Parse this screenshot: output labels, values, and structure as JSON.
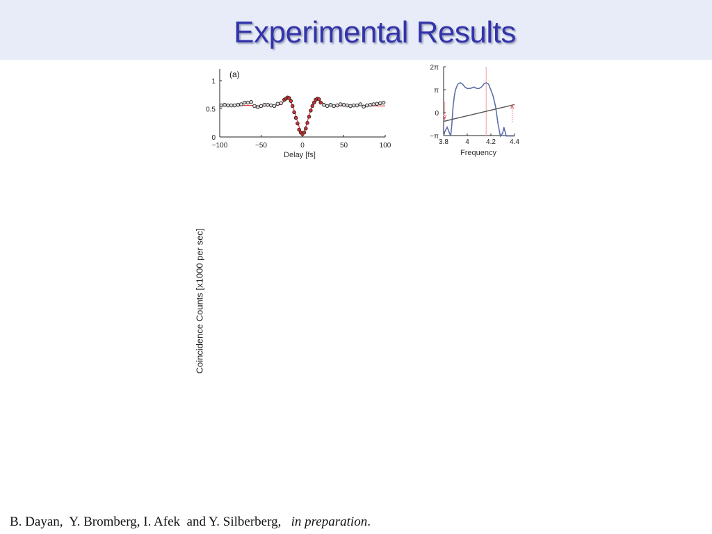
{
  "slide": {
    "title": "Experimental Results",
    "side_ylabel": "Coincidence Counts [x1000 per sec]",
    "citation": {
      "authors": "B. Dayan,  Y. Bromberg, I. Afek  and Y. Silberberg,",
      "status": "in preparation",
      "end": "."
    }
  },
  "chart_data": [
    {
      "type": "scatter",
      "panel_label": "(a)",
      "xlabel": "Delay [fs]",
      "ylabel": "",
      "xlim": [
        -100,
        100
      ],
      "ylim": [
        0,
        1
      ],
      "xticks": [
        "−100",
        "−50",
        "0",
        "50",
        "100"
      ],
      "xtick_values": [
        -100,
        -50,
        0,
        50,
        100
      ],
      "yticks": [
        "0",
        "0.5",
        "1"
      ],
      "ytick_values": [
        0,
        0.5,
        1
      ],
      "colors": {
        "points": "#ffffff",
        "point_stroke": "#222222",
        "near_points": "#e03030",
        "fit": "#e23a3a"
      },
      "series": [
        {
          "kind": "points",
          "x": [
            -98,
            -94,
            -90,
            -86,
            -82,
            -78,
            -74,
            -70,
            -66,
            -62,
            -58,
            -54,
            -50,
            -46,
            -42,
            -38,
            -34,
            -30,
            -26,
            -22,
            -20,
            -18,
            -16,
            -14,
            -12,
            -10,
            -8,
            -6,
            -4,
            -2,
            0,
            2,
            4,
            6,
            8,
            10,
            12,
            14,
            16,
            18,
            20,
            22,
            26,
            30,
            34,
            38,
            42,
            46,
            50,
            54,
            58,
            62,
            66,
            70,
            74,
            78,
            82,
            86,
            90,
            94,
            98
          ],
          "y": [
            0.56,
            0.57,
            0.56,
            0.56,
            0.56,
            0.57,
            0.58,
            0.61,
            0.61,
            0.62,
            0.55,
            0.53,
            0.55,
            0.57,
            0.57,
            0.56,
            0.55,
            0.59,
            0.6,
            0.66,
            0.68,
            0.7,
            0.69,
            0.64,
            0.55,
            0.44,
            0.34,
            0.24,
            0.13,
            0.08,
            0.05,
            0.08,
            0.15,
            0.25,
            0.36,
            0.47,
            0.55,
            0.61,
            0.66,
            0.68,
            0.67,
            0.61,
            0.57,
            0.55,
            0.57,
            0.55,
            0.56,
            0.58,
            0.57,
            0.56,
            0.55,
            0.56,
            0.56,
            0.58,
            0.54,
            0.56,
            0.57,
            0.58,
            0.59,
            0.6,
            0.61
          ]
        },
        {
          "kind": "line",
          "x": [
            -100,
            -90,
            -80,
            -70,
            -60,
            -50,
            -40,
            -34,
            -28,
            -24,
            -20,
            -17,
            -14,
            -11,
            -8,
            -5,
            -2,
            0,
            2,
            5,
            8,
            11,
            14,
            17,
            20,
            24,
            28,
            34,
            40,
            50,
            60,
            70,
            80,
            90,
            100
          ],
          "y": [
            0.55,
            0.55,
            0.55,
            0.56,
            0.56,
            0.55,
            0.55,
            0.55,
            0.57,
            0.61,
            0.66,
            0.68,
            0.64,
            0.52,
            0.38,
            0.22,
            0.1,
            0.07,
            0.1,
            0.22,
            0.38,
            0.52,
            0.64,
            0.68,
            0.66,
            0.61,
            0.57,
            0.55,
            0.55,
            0.55,
            0.56,
            0.56,
            0.55,
            0.55,
            0.55
          ]
        }
      ]
    },
    {
      "type": "line",
      "xlabel": "Frequency",
      "ylabel": "",
      "xlim": [
        3.8,
        4.4
      ],
      "ylim": [
        -3.1416,
        6.2832
      ],
      "xticks": [
        "3.8",
        "4",
        "4.2",
        "4.4"
      ],
      "xtick_values": [
        3.8,
        4.0,
        4.2,
        4.4
      ],
      "yticks": [
        "−π",
        "0",
        "π",
        "2π"
      ],
      "ytick_values": [
        -3.1416,
        0,
        3.1416,
        6.2832
      ],
      "colors": {
        "phase": "#5b6fa8",
        "linear": "#555555",
        "marker": "#f0a0a0",
        "arrow": "#e86060"
      },
      "marker_x": 4.16,
      "series": [
        {
          "kind": "phase",
          "x": [
            3.8,
            3.81,
            3.83,
            3.85,
            3.86,
            3.87,
            3.88,
            3.89,
            3.9,
            3.92,
            3.94,
            3.96,
            3.98,
            4.0,
            4.02,
            4.04,
            4.06,
            4.08,
            4.1,
            4.12,
            4.14,
            4.16,
            4.18,
            4.2,
            4.22,
            4.24,
            4.26,
            4.28,
            4.3,
            4.31,
            4.32,
            4.33,
            4.34,
            4.35,
            4.37,
            4.39,
            4.4
          ],
          "y": [
            -3.2,
            -2.6,
            -2.0,
            -2.8,
            -3.2,
            -1.5,
            0.8,
            2.2,
            3.1,
            3.9,
            4.1,
            3.9,
            3.5,
            3.3,
            3.3,
            3.4,
            3.5,
            3.3,
            3.3,
            3.5,
            3.9,
            4.1,
            3.9,
            3.1,
            2.2,
            0.8,
            -1.5,
            -3.2,
            -2.8,
            -2.0,
            -2.6,
            -3.2,
            -3.2,
            -3.2,
            -3.2,
            -3.2,
            -3.2
          ]
        },
        {
          "kind": "linear",
          "x": [
            3.8,
            4.4
          ],
          "y": [
            -1.2,
            1.1
          ]
        }
      ]
    }
  ]
}
